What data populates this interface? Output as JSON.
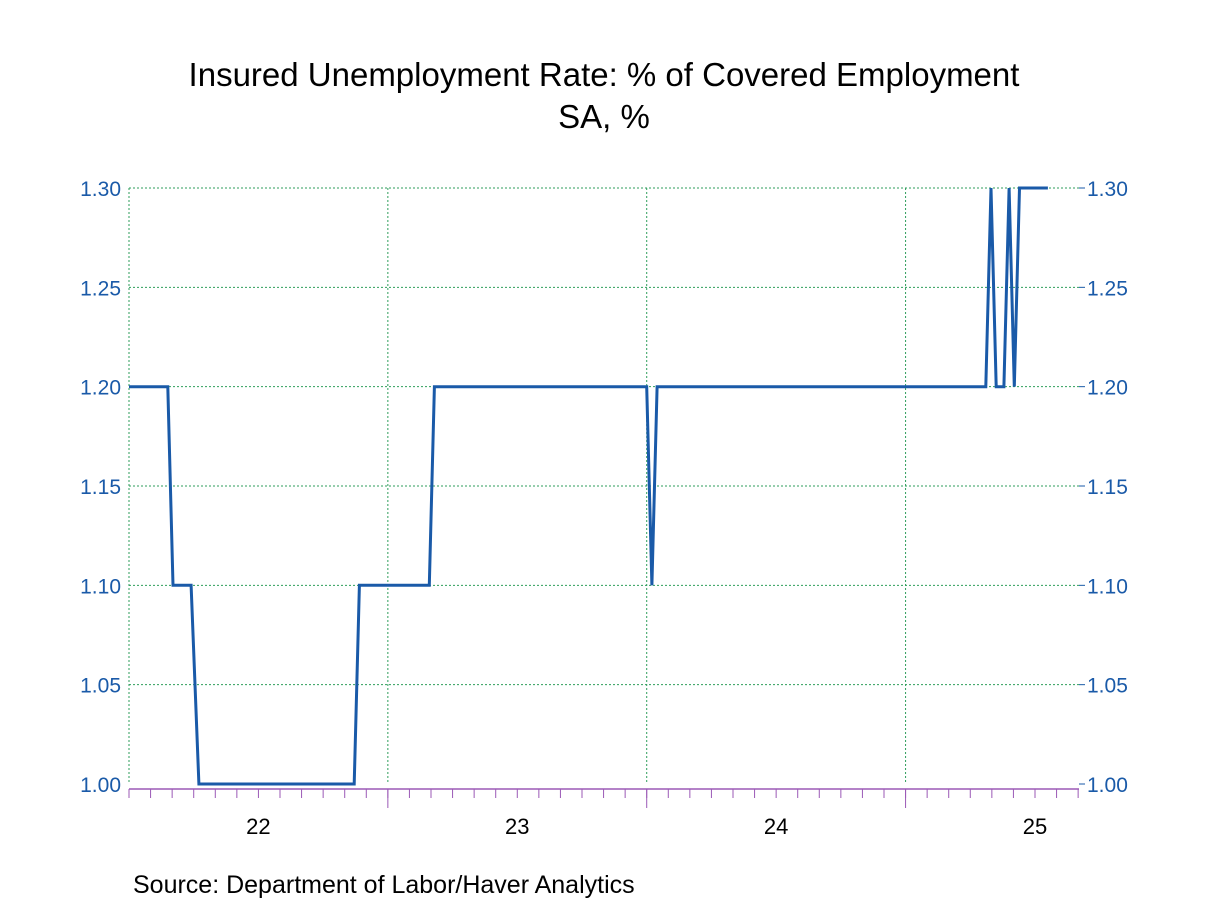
{
  "chart_data": {
    "type": "line",
    "title": "Insured Unemployment Rate: % of Covered Employment",
    "subtitle": "SA, %",
    "source": "Source:  Department of Labor/Haver Analytics",
    "ylim": [
      1.0,
      1.3
    ],
    "yticks": [
      "1.30",
      "1.25",
      "1.20",
      "1.15",
      "1.10",
      "1.05",
      "1.00"
    ],
    "xlim": [
      2021.5,
      2025.17
    ],
    "xtick_labels": [
      {
        "label": "22",
        "x": 2022.0
      },
      {
        "label": "23",
        "x": 2023.0
      },
      {
        "label": "24",
        "x": 2024.0
      },
      {
        "label": "25",
        "x": 2025.0
      }
    ],
    "grid": true,
    "right_axis": true,
    "colors": {
      "line": "#1a5aa8",
      "axis_text": "#1a5aa8",
      "grid": "#2e9e5b",
      "frame": "#9b59b6"
    },
    "series": [
      {
        "x": [
          2021.5,
          2021.52,
          2021.65,
          2021.67,
          2021.74,
          2021.77,
          2022.37,
          2022.39,
          2022.66,
          2022.68,
          2023.5,
          2023.52,
          2023.54,
          2024.81,
          2024.83,
          2024.85,
          2024.88,
          2024.9,
          2024.92,
          2024.94,
          2025.05
        ],
        "y": [
          1.2,
          1.2,
          1.2,
          1.1,
          1.1,
          1.0,
          1.0,
          1.1,
          1.1,
          1.2,
          1.2,
          1.1,
          1.2,
          1.2,
          1.3,
          1.2,
          1.2,
          1.3,
          1.2,
          1.3,
          1.3
        ]
      }
    ]
  }
}
